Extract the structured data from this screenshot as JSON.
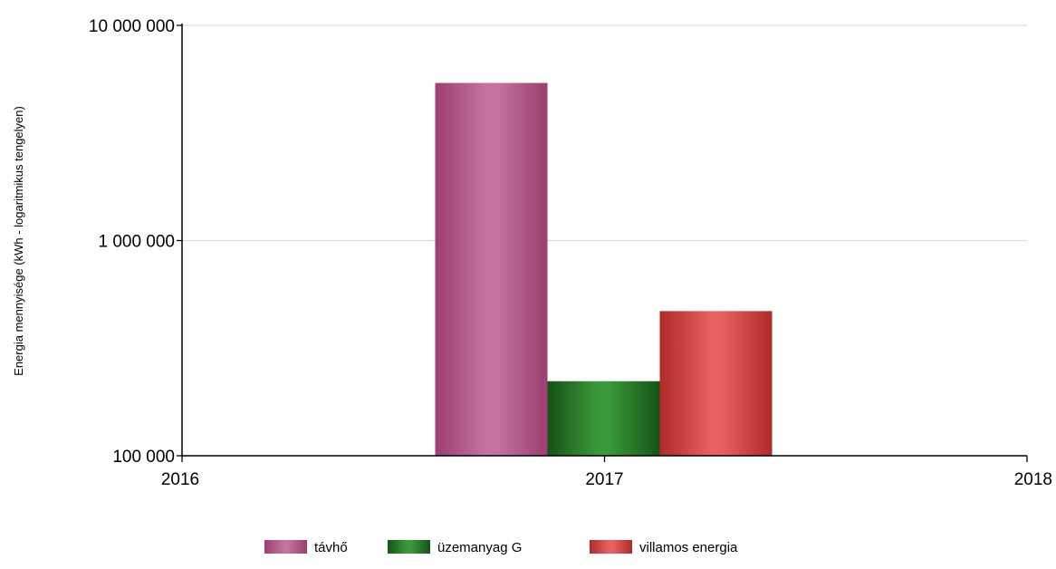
{
  "chart_data": {
    "type": "bar",
    "ylabel": "Energia mennyisége (kWh - logaritmikus tengelyen)",
    "yscale": "log",
    "ylim": [
      100000,
      10000000
    ],
    "y_ticks": [
      {
        "value": 100000,
        "label": "100 000"
      },
      {
        "value": 1000000,
        "label": "1 000 000"
      },
      {
        "value": 10000000,
        "label": "10 000 000"
      }
    ],
    "x_ticks": [
      "2016",
      "2017",
      "2018"
    ],
    "categories": [
      "2017"
    ],
    "series": [
      {
        "name": "távhő",
        "values": [
          5400000
        ],
        "color": "#c4729f",
        "dark": "#9b3f71"
      },
      {
        "name": "üzemanyag G",
        "values": [
          222000
        ],
        "color": "#3a9a3a",
        "dark": "#165216"
      },
      {
        "name": "villamos energia",
        "values": [
          470000
        ],
        "color": "#e86060",
        "dark": "#b02a2a"
      }
    ],
    "grid": true,
    "legend_position": "bottom-center"
  }
}
